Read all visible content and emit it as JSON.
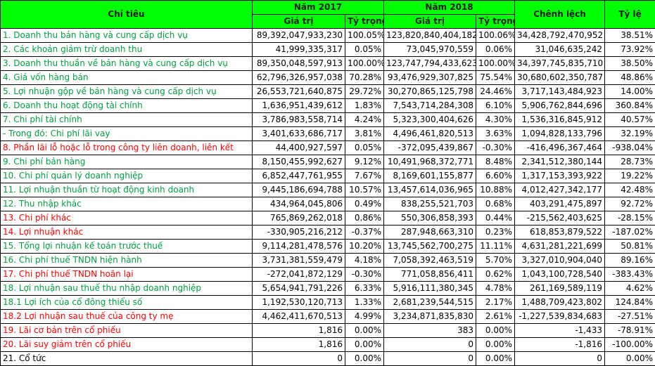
{
  "header": {
    "indicator": "Chỉ tiêu",
    "year_a": "Năm 2017",
    "year_b": "Năm 2018",
    "difference": "Chênh lệch",
    "ratio": "Tỷ lệ",
    "sub": [
      "Giá trị",
      "Tỷ trọng",
      "Giá trị",
      "Tỷ trọng"
    ]
  },
  "rows": [
    {
      "label": "1. Doanh thu bán hàng và cung cấp dịch vụ",
      "color": "green",
      "cells": [
        "89,392,047,933,230",
        "100.05%",
        "123,820,840,404,182",
        "100.06%",
        "34,428,792,470,952",
        "38.51%"
      ]
    },
    {
      "label": "2. Các khoản giảm trừ doanh thu",
      "color": "green",
      "cells": [
        "41,999,335,317",
        "0.05%",
        "73,045,970,559",
        "0.06%",
        "31,046,635,242",
        "73.92%"
      ]
    },
    {
      "label": "3. Doanh thu thuần về bán hàng và cung cấp dịch vụ",
      "color": "green",
      "cells": [
        "89,350,048,597,913",
        "100.00%",
        "123,747,794,433,623",
        "100.00%",
        "34,397,745,835,710",
        "38.50%"
      ]
    },
    {
      "label": "4. Giá vốn hàng bán",
      "color": "green",
      "cells": [
        "62,796,326,957,038",
        "70.28%",
        "93,476,929,307,825",
        "75.54%",
        "30,680,602,350,787",
        "48.86%"
      ]
    },
    {
      "label": "5. Lợi nhuận gộp về bán hàng và cung cấp dịch vụ",
      "color": "green",
      "cells": [
        "26,553,721,640,875",
        "29.72%",
        "30,270,865,125,798",
        "24.46%",
        "3,717,143,484,923",
        "14.00%"
      ]
    },
    {
      "label": "6. Doanh thu hoạt động tài chính",
      "color": "green",
      "cells": [
        "1,636,951,439,612",
        "1.83%",
        "7,543,714,284,308",
        "6.10%",
        "5,906,762,844,696",
        "360.84%"
      ]
    },
    {
      "label": "7. Chi phí tài chính",
      "color": "green",
      "cells": [
        "3,786,983,558,714",
        "4.24%",
        "5,323,300,404,626",
        "4.30%",
        "1,536,316,845,912",
        "40.57%"
      ]
    },
    {
      "label": " - Trong đó: Chi phí lãi vay",
      "color": "green",
      "cells": [
        "3,401,633,686,717",
        "3.81%",
        "4,496,461,820,513",
        "3.63%",
        "1,094,828,133,796",
        "32.19%"
      ]
    },
    {
      "label": "8. Phần lãi lỗ hoặc lỗ trong công ty liên doanh, liên kết",
      "color": "red",
      "cells": [
        "44,400,927,597",
        "0.05%",
        "-372,095,439,867",
        "-0.30%",
        "-416,496,367,464",
        "-938.04%"
      ]
    },
    {
      "label": "9. Chi phí bán hàng",
      "color": "green",
      "cells": [
        "8,150,455,992,627",
        "9.12%",
        "10,491,968,372,771",
        "8.48%",
        "2,341,512,380,144",
        "28.73%"
      ]
    },
    {
      "label": "10. Chi phí quản lý doanh nghiệp",
      "color": "green",
      "cells": [
        "6,852,447,761,955",
        "7.67%",
        "8,169,601,155,877",
        "6.60%",
        "1,317,153,393,922",
        "19.22%"
      ]
    },
    {
      "label": "11. Lợi nhuận thuần từ hoạt động kinh doanh",
      "color": "green",
      "cells": [
        "9,445,186,694,788",
        "10.57%",
        "13,457,614,036,965",
        "10.88%",
        "4,012,427,342,177",
        "42.48%"
      ]
    },
    {
      "label": "12. Thu nhập khác",
      "color": "green",
      "cells": [
        "434,964,045,806",
        "0.49%",
        "838,255,521,703",
        "0.68%",
        "403,291,475,897",
        "92.72%"
      ]
    },
    {
      "label": "13. Chi phí khác",
      "color": "red",
      "cells": [
        "765,869,262,018",
        "0.86%",
        "550,306,858,393",
        "0.44%",
        "-215,562,403,625",
        "-28.15%"
      ]
    },
    {
      "label": "14. Lợi nhuận khác",
      "color": "red",
      "cells": [
        "-330,905,216,212",
        "-0.37%",
        "287,948,663,310",
        "0.23%",
        "618,853,879,522",
        "-187.02%"
      ]
    },
    {
      "label": "15. Tổng lợi nhuận kế toán trước thuế",
      "color": "green",
      "cells": [
        "9,114,281,478,576",
        "10.20%",
        "13,745,562,700,275",
        "11.11%",
        "4,631,281,221,699",
        "50.81%"
      ]
    },
    {
      "label": "16. Chi phí thuế TNDN hiện hành",
      "color": "green",
      "cells": [
        "3,731,381,559,479",
        "4.18%",
        "7,058,392,463,519",
        "5.70%",
        "3,327,010,904,040",
        "89.16%"
      ]
    },
    {
      "label": "17. Chi phí thuế TNDN hoãn lại",
      "color": "red",
      "cells": [
        "-272,041,872,129",
        "-0.30%",
        "771,058,856,411",
        "0.62%",
        "1,043,100,728,540",
        "-383.43%"
      ]
    },
    {
      "label": "18. Lợi nhuận sau thuế thu nhập doanh nghiệp",
      "color": "green",
      "cells": [
        "5,654,941,791,226",
        "6.33%",
        "5,916,111,380,345",
        "4.78%",
        "261,169,589,119",
        "4.62%"
      ]
    },
    {
      "label": "18.1 Lợi ích của cổ đông thiểu số",
      "color": "green",
      "cells": [
        "1,192,530,120,713",
        "1.33%",
        "2,681,239,544,515",
        "2.17%",
        "1,488,709,423,802",
        "124.84%"
      ]
    },
    {
      "label": "18.2 Lợi nhuận sau thuế của công ty mẹ",
      "color": "red",
      "cells": [
        "4,462,411,670,513",
        "4.99%",
        "3,234,871,835,830",
        "2.61%",
        "-1,227,539,834,683",
        "-27.51%"
      ]
    },
    {
      "label": "19. Lãi cơ bản trên cổ phiếu",
      "color": "red",
      "cells": [
        "1,816",
        "0.00%",
        "383",
        "0.00%",
        "-1,433",
        "-78.91%"
      ]
    },
    {
      "label": "20. Lãi suy giảm trên cổ phiếu",
      "color": "red",
      "cells": [
        "1,816",
        "0.00%",
        "0",
        "0.00%",
        "-1,816",
        "-100.00%"
      ]
    },
    {
      "label": "21. Cổ tức",
      "color": "black",
      "cells": [
        "0",
        "0.00%",
        "0",
        "0.00%",
        "0",
        "0.00%"
      ]
    }
  ]
}
